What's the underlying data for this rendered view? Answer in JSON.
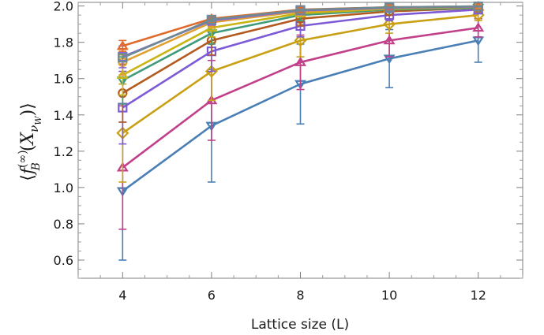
{
  "chart_data": {
    "type": "line",
    "title": "",
    "xlabel": "Lattice size (L)",
    "ylabel": {
      "open": "⟨",
      "f": "f",
      "sup": "(∞)",
      "sub": "B",
      "arg_open": "(",
      "X": "X",
      "nu": "ν",
      "W": "W",
      "arg_close": ")",
      "close": "⟩"
    },
    "x": [
      4,
      6,
      8,
      10,
      12
    ],
    "xticks": [
      "4",
      "6",
      "8",
      "10",
      "12"
    ],
    "yticks": [
      "0.6",
      "0.8",
      "1.0",
      "1.2",
      "1.4",
      "1.6",
      "1.8",
      "2.0"
    ],
    "xlim": [
      3,
      13
    ],
    "ylim": [
      0.5,
      2.02
    ],
    "grid": false,
    "legend": "none",
    "series": [
      {
        "color": "#4a7fb5",
        "marker": "triangle-down",
        "values": [
          0.98,
          1.34,
          1.57,
          1.71,
          1.81
        ],
        "errors": [
          0.38,
          0.31,
          0.22,
          0.16,
          0.12
        ]
      },
      {
        "color": "#c2408a",
        "marker": "triangle-up",
        "values": [
          1.11,
          1.48,
          1.69,
          1.81,
          1.88
        ],
        "errors": [
          0.34,
          0.22,
          0.15,
          0.09,
          0.05
        ]
      },
      {
        "color": "#c9a014",
        "marker": "diamond",
        "values": [
          1.3,
          1.64,
          1.81,
          1.9,
          1.95
        ],
        "errors": [
          0.27,
          0.16,
          0.09,
          0.05,
          0.03
        ]
      },
      {
        "color": "#7d5bd6",
        "marker": "square",
        "values": [
          1.44,
          1.75,
          1.89,
          1.95,
          1.98
        ],
        "errors": [
          0.2,
          0.11,
          0.06,
          0.03,
          0.02
        ]
      },
      {
        "color": "#b35a1f",
        "marker": "circle",
        "values": [
          1.52,
          1.81,
          1.93,
          1.97,
          1.99
        ],
        "errors": [
          0.16,
          0.08,
          0.04,
          0.02,
          0.01
        ]
      },
      {
        "color": "#3f9b7a",
        "marker": "triangle-down",
        "values": [
          1.59,
          1.85,
          1.95,
          1.98,
          1.99
        ],
        "errors": [
          0.13,
          0.06,
          0.03,
          0.015,
          0.01
        ]
      },
      {
        "color": "#c9b414",
        "marker": "triangle-up",
        "values": [
          1.62,
          1.88,
          1.96,
          1.985,
          1.995
        ],
        "errors": [
          0.11,
          0.05,
          0.02,
          0.01,
          0.005
        ]
      },
      {
        "color": "#e0a030",
        "marker": "circle",
        "values": [
          1.69,
          1.91,
          1.97,
          1.99,
          1.995
        ],
        "errors": [
          0.07,
          0.03,
          0.015,
          0.008,
          0.004
        ]
      },
      {
        "color": "#8a65d8",
        "marker": "square",
        "values": [
          1.72,
          1.92,
          1.975,
          1.99,
          1.997
        ],
        "errors": [
          0.06,
          0.025,
          0.012,
          0.006,
          0.003
        ]
      },
      {
        "color": "#e06a2c",
        "marker": "triangle-up",
        "values": [
          1.78,
          1.93,
          1.98,
          1.993,
          1.998
        ],
        "errors": [
          0.03,
          0.015,
          0.008,
          0.004,
          0.002
        ]
      },
      {
        "color": "#6f8a95",
        "marker": "square",
        "values": [
          1.715,
          1.925,
          1.978,
          1.993,
          1.998
        ],
        "errors": [
          0.02,
          0.01,
          0.005,
          0.003,
          0.002
        ]
      }
    ]
  }
}
